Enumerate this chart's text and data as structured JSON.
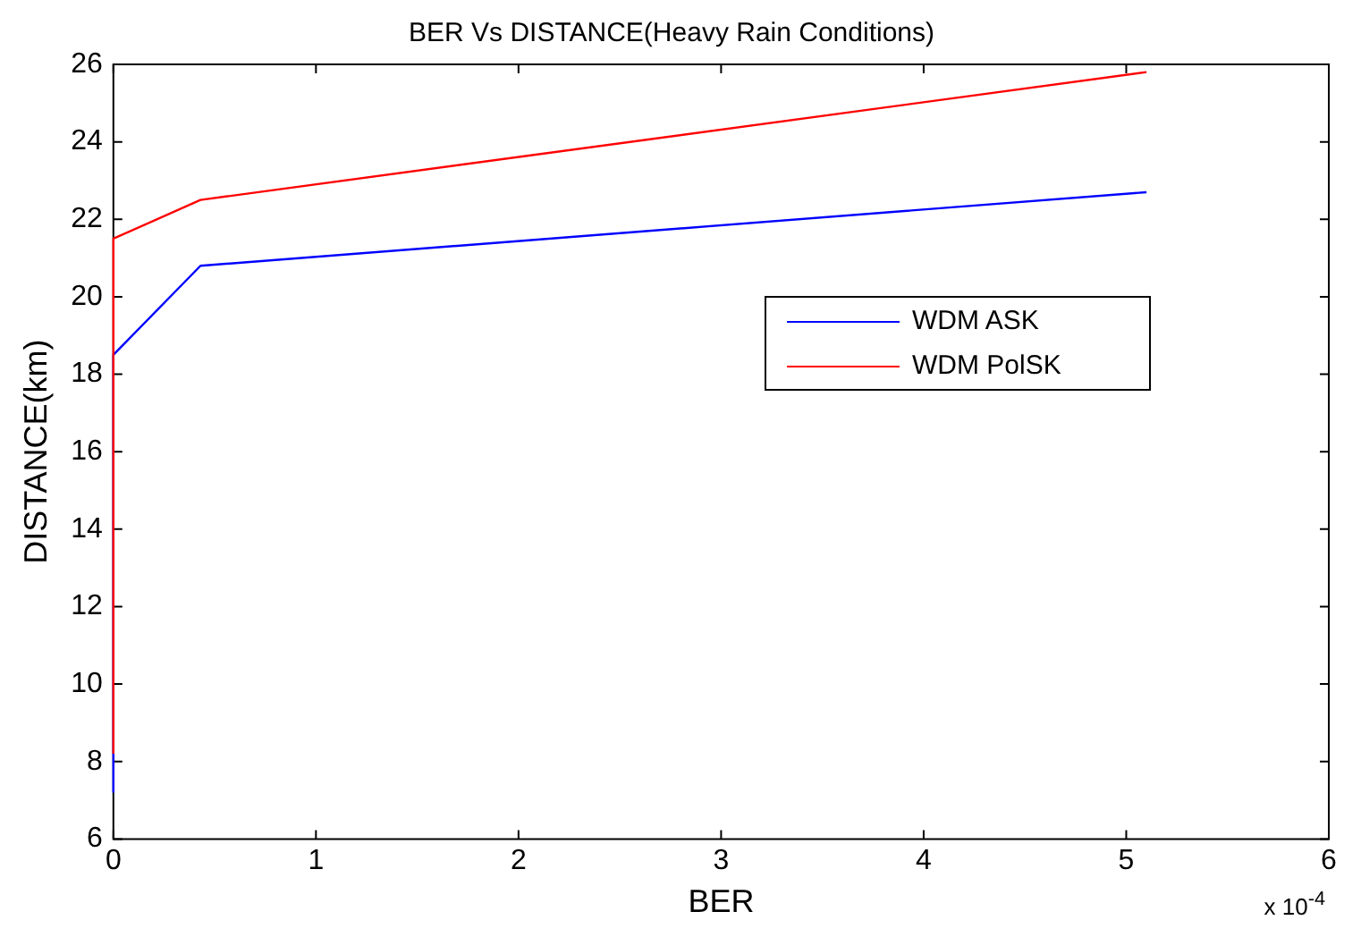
{
  "chart_data": {
    "type": "line",
    "title": "BER Vs DISTANCE(Heavy Rain Conditions)",
    "xlabel": "BER",
    "ylabel": "DISTANCE(km)",
    "series": [
      {
        "name": "WDM ASK",
        "color": "#0000ff",
        "x": [
          0,
          0,
          0.43,
          5.1
        ],
        "values": [
          7.2,
          18.5,
          20.8,
          22.7
        ]
      },
      {
        "name": "WDM PolSK",
        "color": "#ff0000",
        "x": [
          0,
          0,
          0.43,
          5.1
        ],
        "values": [
          8.2,
          21.5,
          22.5,
          25.8
        ]
      }
    ],
    "xlim": [
      0,
      6
    ],
    "xticks": [
      0,
      1,
      2,
      3,
      4,
      5,
      6
    ],
    "ylim": [
      6,
      26
    ],
    "yticks": [
      6,
      8,
      10,
      12,
      14,
      16,
      18,
      20,
      22,
      24,
      26
    ],
    "grid": false,
    "legend": "right",
    "marker": "none",
    "line_style": "solid",
    "annotations": [
      "x 10$^{-4}$"
    ]
  }
}
